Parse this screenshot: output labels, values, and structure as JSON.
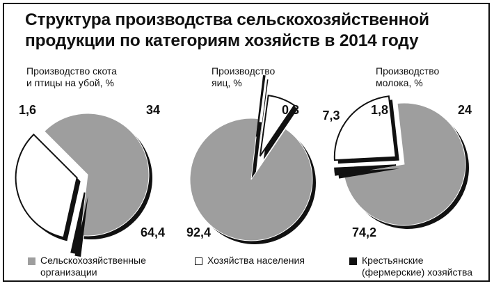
{
  "title_lines": [
    "Структура производства сельскохозяйственной",
    "продукции по категориям хозяйств в 2014 году"
  ],
  "colors": {
    "agri": "#9e9e9e",
    "household": "#ffffff",
    "farm": "#111111"
  },
  "legend": [
    {
      "key": "agri",
      "lines": [
        "Сельскохозяйственные",
        "организации"
      ]
    },
    {
      "key": "household",
      "lines": [
        "Хозяйства населения"
      ]
    },
    {
      "key": "farm",
      "lines": [
        "Крестьянские",
        "(фермерские) хозяйства"
      ]
    }
  ],
  "chart_data": [
    {
      "type": "pie",
      "title_lines": [
        "Производство скота",
        "и птицы на убой, %"
      ],
      "slices": [
        {
          "series": "agri",
          "value": 64.4,
          "label": "64,4"
        },
        {
          "series": "household",
          "value": 34,
          "label": "34"
        },
        {
          "series": "farm",
          "value": 1.6,
          "label": "1,6"
        }
      ]
    },
    {
      "type": "pie",
      "title_lines": [
        "Производство",
        "яиц, %"
      ],
      "slices": [
        {
          "series": "agri",
          "value": 92.4,
          "label": "92,4"
        },
        {
          "series": "household",
          "value": 7.3,
          "label": "7,3"
        },
        {
          "series": "farm",
          "value": 0.3,
          "label": "0,3"
        }
      ]
    },
    {
      "type": "pie",
      "title_lines": [
        "Производство",
        "молока, %"
      ],
      "slices": [
        {
          "series": "agri",
          "value": 74.2,
          "label": "74,2"
        },
        {
          "series": "household",
          "value": 24,
          "label": "24"
        },
        {
          "series": "farm",
          "value": 1.8,
          "label": "1,8"
        }
      ]
    }
  ]
}
